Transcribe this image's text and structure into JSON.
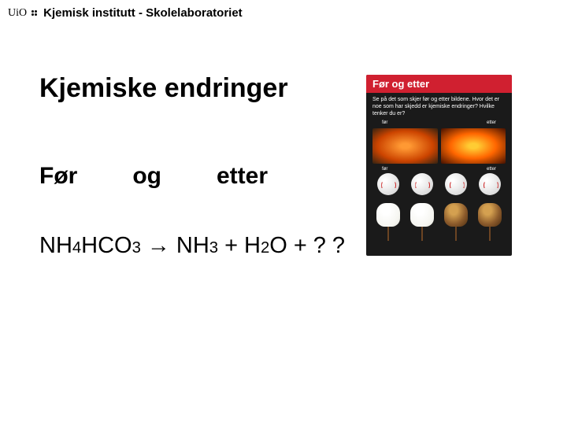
{
  "header": {
    "logo_text": "UiO",
    "title": "Kjemisk institutt - Skolelaboratoriet"
  },
  "content": {
    "main_title": "Kjemiske endringer",
    "subtitle": {
      "word1": "Før",
      "word2": "og",
      "word3": "etter"
    },
    "equation": {
      "reactant": {
        "base1": "NH",
        "sub1": "4",
        "base2": "HCO",
        "sub2": "3"
      },
      "arrow": "→",
      "product1": {
        "base": "NH",
        "sub": "3"
      },
      "plus1": "+",
      "product2": {
        "base1": "H",
        "sub1": "2",
        "base2": "O"
      },
      "plus2": "+",
      "unknown": "? ?"
    }
  },
  "book": {
    "header_text": "Før og etter",
    "subtitle_text": "Se på det som skjer før og etter bildene. Hvor det er noe som har skjedd er kjemiske endringer? Hvilke tenker du er?",
    "label_for": "før",
    "label_etter": "etter"
  },
  "colors": {
    "header_red": "#d02030",
    "book_bg": "#1a1a1a",
    "text": "#000000"
  }
}
